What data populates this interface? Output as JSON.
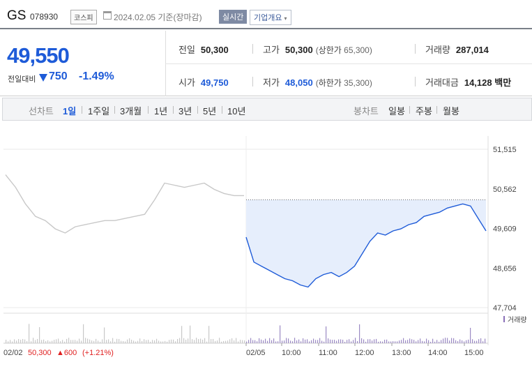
{
  "header": {
    "name": "GS",
    "code": "078930",
    "market": "코스피",
    "date": "2024.02.05 기준(장마감)",
    "realtime": "실시간",
    "company_info": "기업개요",
    "company_info_arrow": "▾"
  },
  "summary": {
    "price": "49,550",
    "change_label": "전일대비",
    "change_value": "750",
    "change_pct": "-1.49%",
    "prev_close": {
      "label": "전일",
      "value": "50,300"
    },
    "high": {
      "label": "고가",
      "value": "50,300",
      "sub_label": "상한가",
      "sub_value": "65,300"
    },
    "volume": {
      "label": "거래량",
      "value": "287,014"
    },
    "open": {
      "label": "시가",
      "value": "49,750"
    },
    "low": {
      "label": "저가",
      "value": "48,050",
      "sub_label": "하한가",
      "sub_value": "35,300"
    },
    "amount": {
      "label": "거래대금",
      "value": "14,128",
      "unit": "백만"
    }
  },
  "tabs": {
    "line_label": "선차트",
    "line_items": [
      "1일",
      "1주일",
      "3개월",
      "1년",
      "3년",
      "5년",
      "10년"
    ],
    "active": "1일",
    "candle_label": "봉차트",
    "candle_items": [
      "일봉",
      "주봉",
      "월봉"
    ]
  },
  "chart_data": {
    "type": "line",
    "y_ticks": [
      "51,515",
      "50,562",
      "49,609",
      "48,656",
      "47,704"
    ],
    "ylim": [
      47704,
      51515
    ],
    "prev_close": 50300,
    "x_ticks": [
      "02/05",
      "10:00",
      "11:00",
      "12:00",
      "13:00",
      "14:00",
      "15:00"
    ],
    "prev_day_label": "02/02",
    "prev_day_close": "50,300",
    "prev_day_change": "▲600",
    "prev_day_pct": "(+1.21%)",
    "volume_label": "거래량",
    "series": [
      {
        "values": [
          50900,
          50600,
          50200,
          49900,
          49800,
          49600,
          49500,
          49650,
          49700,
          49750,
          49800,
          49800,
          49850,
          49900,
          49950,
          50300,
          50700,
          50650,
          50600,
          50650,
          50700,
          50550,
          50450,
          50400,
          50400
        ]
      },
      {
        "values": [
          49400,
          48800,
          48700,
          48600,
          48500,
          48400,
          48350,
          48250,
          48200,
          48400,
          48500,
          48550,
          48450,
          48550,
          48700,
          49000,
          49300,
          49500,
          49450,
          49550,
          49600,
          49700,
          49750,
          49900,
          49950,
          50000,
          50100,
          50150,
          50200,
          50150,
          49850,
          49550
        ]
      }
    ]
  },
  "colors": {
    "accent": "#1e5bd8",
    "up": "#e02020",
    "area": "#e6eefc"
  }
}
